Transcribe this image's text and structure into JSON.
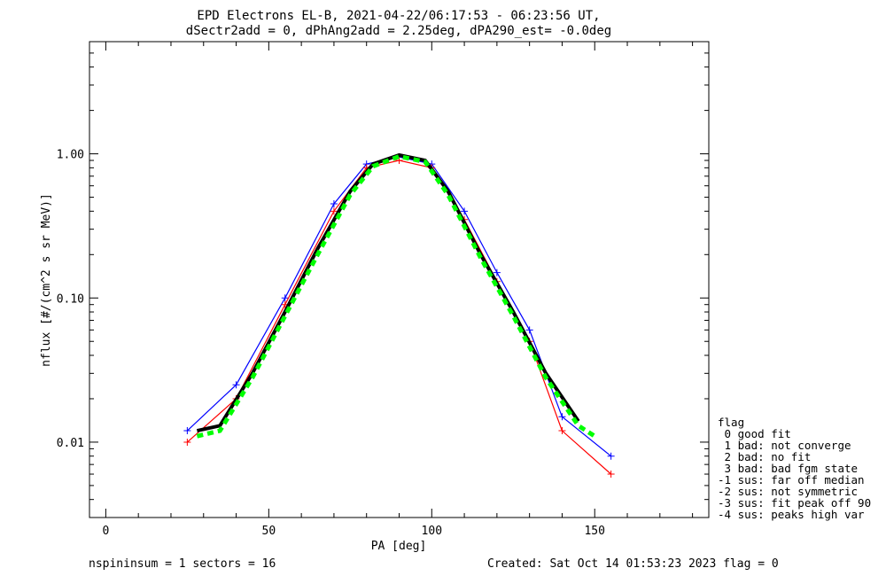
{
  "chart_data": {
    "type": "line",
    "title": "EPD Electrons EL-B, 2021-04-22/06:17:53 - 06:23:56 UT,",
    "subtitle": "dSectr2add = 0, dPhAng2add = 2.25deg, dPA290_est=  -0.0deg",
    "xlabel": "PA [deg]",
    "ylabel": "nflux [#/(cm^2 s sr MeV)]",
    "xlim": [
      -5,
      185
    ],
    "ylim": [
      0.003,
      6
    ],
    "yscale": "log",
    "x_ticks": [
      0,
      50,
      100,
      150
    ],
    "x_tick_labels": [
      "0",
      "50",
      "100",
      "150"
    ],
    "y_ticks": [
      0.01,
      0.1,
      1.0
    ],
    "y_tick_labels": [
      "0.01",
      "0.10",
      "1.00"
    ],
    "series": [
      {
        "color": "#0000ff",
        "x": [
          25,
          40,
          55,
          70,
          80,
          90,
          100,
          110,
          120,
          130,
          140,
          155
        ],
        "y": [
          0.012,
          0.025,
          0.1,
          0.45,
          0.85,
          0.95,
          0.85,
          0.4,
          0.15,
          0.06,
          0.015,
          0.008
        ]
      },
      {
        "color": "#ff0000",
        "x": [
          25,
          40,
          55,
          70,
          80,
          90,
          100,
          110,
          120,
          130,
          140,
          155
        ],
        "y": [
          0.01,
          0.02,
          0.09,
          0.4,
          0.8,
          0.9,
          0.8,
          0.35,
          0.13,
          0.05,
          0.012,
          0.006
        ]
      },
      {
        "color": "#000000",
        "x": [
          28,
          35,
          45,
          55,
          65,
          75,
          82,
          90,
          98,
          105,
          115,
          125,
          135,
          145
        ],
        "y": [
          0.012,
          0.013,
          0.03,
          0.08,
          0.22,
          0.55,
          0.85,
          0.98,
          0.9,
          0.55,
          0.2,
          0.08,
          0.03,
          0.014
        ]
      },
      {
        "color": "#00ff00",
        "x": [
          28,
          35,
          45,
          55,
          65,
          75,
          82,
          90,
          98,
          105,
          115,
          125,
          135,
          145,
          150
        ],
        "y": [
          0.011,
          0.012,
          0.028,
          0.075,
          0.2,
          0.52,
          0.82,
          0.96,
          0.88,
          0.52,
          0.19,
          0.075,
          0.028,
          0.013,
          0.011
        ]
      }
    ]
  },
  "legend": {
    "title": "flag",
    "items": [
      " 0 good fit",
      " 1 bad: not converge",
      " 2 bad: no fit",
      " 3 bad: bad fgm state",
      "-1 sus: far off median",
      "-2 sus: not symmetric",
      "-3 sus: fit peak off 90",
      "-4 sus: peaks high var"
    ]
  },
  "footer": {
    "left": "nspininsum =  1  sectors = 16",
    "right": "Created: Sat Oct 14 01:53:23 2023   flag = 0"
  }
}
